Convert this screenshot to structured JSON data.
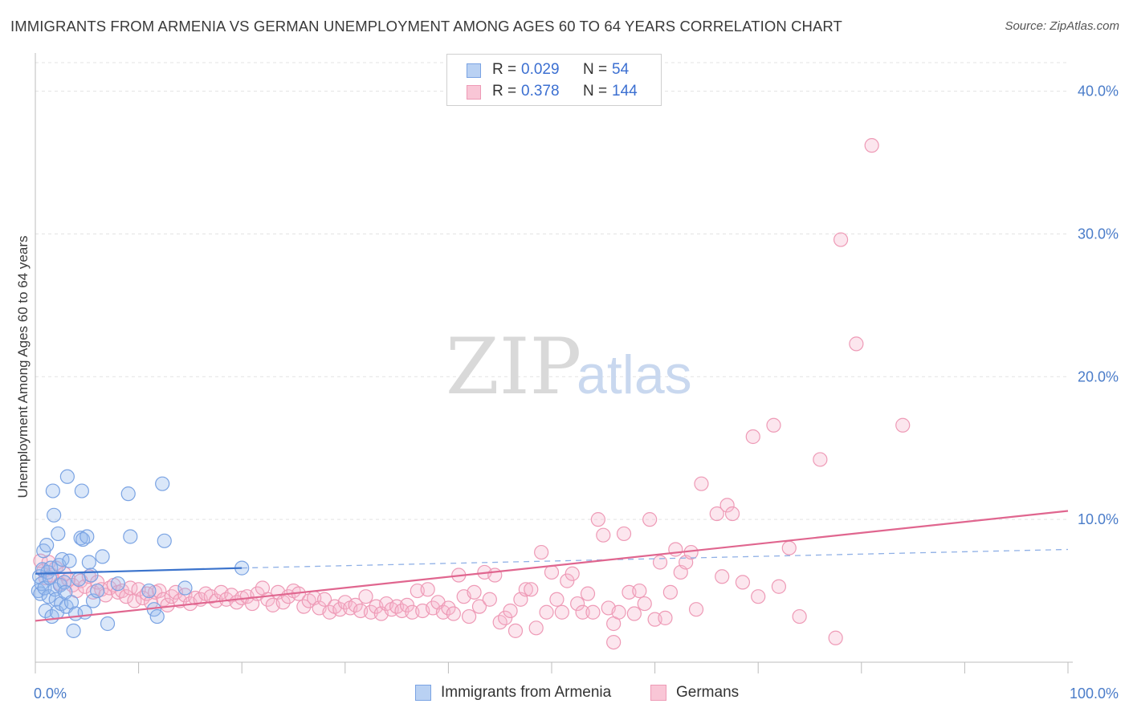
{
  "title": "IMMIGRANTS FROM ARMENIA VS GERMAN UNEMPLOYMENT AMONG AGES 60 TO 64 YEARS CORRELATION CHART",
  "source": "Source: ZipAtlas.com",
  "watermark": {
    "zip": "ZIP",
    "atlas": "atlas"
  },
  "legend": {
    "r_label": "R =",
    "n_label": "N =",
    "rows": [
      {
        "r": "0.029",
        "n": "54",
        "color": "#b9d1f3",
        "border": "#7aa3e3"
      },
      {
        "r": "0.378",
        "n": "144",
        "color": "#f9c6d6",
        "border": "#ee9ab6"
      }
    ]
  },
  "bottom_legend": [
    {
      "label": "Immigrants from Armenia",
      "color": "#b9d1f3",
      "border": "#7aa3e3"
    },
    {
      "label": "Germans",
      "color": "#f9c6d6",
      "border": "#ee9ab6"
    }
  ],
  "chart_data": {
    "type": "scatter",
    "xlabel": "",
    "ylabel": "Unemployment Among Ages 60 to 64 years",
    "xlim": [
      0,
      100
    ],
    "ylim": [
      0,
      42
    ],
    "x_tick_labels": [
      "0.0%",
      "100.0%"
    ],
    "y_ticks": [
      10,
      20,
      30,
      40
    ],
    "y_tick_labels": [
      "10.0%",
      "20.0%",
      "30.0%",
      "40.0%"
    ],
    "grid": true,
    "series": [
      {
        "name": "Immigrants from Armenia",
        "color": "#7aa3e3",
        "fill": "rgba(150,185,238,0.35)",
        "trend": {
          "x0": 0,
          "y0": 6.2,
          "x1": 20,
          "y1": 6.6,
          "dash_to_x": 100,
          "dash_to_y": 7.9,
          "color": "#3b73cc"
        },
        "points": [
          [
            0.3,
            5.0
          ],
          [
            0.4,
            6.0
          ],
          [
            0.5,
            4.8
          ],
          [
            0.6,
            5.5
          ],
          [
            0.7,
            6.5
          ],
          [
            0.8,
            7.8
          ],
          [
            0.9,
            5.2
          ],
          [
            1.0,
            3.6
          ],
          [
            1.1,
            8.2
          ],
          [
            1.2,
            6.3
          ],
          [
            1.3,
            4.6
          ],
          [
            1.4,
            5.9
          ],
          [
            1.5,
            6.6
          ],
          [
            1.6,
            3.2
          ],
          [
            1.7,
            12.0
          ],
          [
            1.8,
            10.3
          ],
          [
            1.9,
            5.1
          ],
          [
            2.0,
            4.4
          ],
          [
            2.1,
            3.5
          ],
          [
            2.2,
            9.0
          ],
          [
            2.3,
            6.8
          ],
          [
            2.4,
            5.4
          ],
          [
            2.5,
            4.1
          ],
          [
            2.6,
            7.2
          ],
          [
            2.8,
            5.6
          ],
          [
            2.9,
            4.9
          ],
          [
            3.0,
            3.9
          ],
          [
            3.1,
            13.0
          ],
          [
            3.3,
            7.1
          ],
          [
            3.5,
            4.2
          ],
          [
            3.7,
            2.2
          ],
          [
            3.9,
            3.4
          ],
          [
            4.2,
            5.8
          ],
          [
            4.4,
            8.7
          ],
          [
            4.5,
            12.0
          ],
          [
            4.6,
            8.6
          ],
          [
            4.8,
            3.5
          ],
          [
            5.0,
            8.8
          ],
          [
            5.2,
            7.0
          ],
          [
            5.4,
            6.1
          ],
          [
            5.6,
            4.3
          ],
          [
            6.0,
            5.0
          ],
          [
            6.5,
            7.4
          ],
          [
            7.0,
            2.7
          ],
          [
            8.0,
            5.5
          ],
          [
            9.0,
            11.8
          ],
          [
            9.2,
            8.8
          ],
          [
            11.0,
            5.0
          ],
          [
            11.5,
            3.7
          ],
          [
            11.8,
            3.2
          ],
          [
            12.3,
            12.5
          ],
          [
            12.5,
            8.5
          ],
          [
            14.5,
            5.2
          ],
          [
            20.0,
            6.6
          ]
        ]
      },
      {
        "name": "Germans",
        "color": "#ee9ab6",
        "fill": "rgba(247,183,205,0.35)",
        "trend": {
          "x0": 0,
          "y0": 2.9,
          "x1": 100,
          "y1": 10.6,
          "color": "#e0668f"
        },
        "points": [
          [
            0.5,
            7.1
          ],
          [
            0.8,
            6.4
          ],
          [
            1.0,
            5.9
          ],
          [
            1.3,
            7.0
          ],
          [
            1.6,
            6.1
          ],
          [
            2.0,
            6.6
          ],
          [
            2.4,
            5.5
          ],
          [
            2.8,
            6.2
          ],
          [
            3.2,
            5.8
          ],
          [
            3.6,
            5.4
          ],
          [
            4.0,
            5.0
          ],
          [
            4.4,
            5.7
          ],
          [
            4.8,
            5.3
          ],
          [
            5.2,
            6.0
          ],
          [
            5.6,
            4.9
          ],
          [
            6.0,
            5.6
          ],
          [
            6.4,
            5.1
          ],
          [
            6.8,
            4.7
          ],
          [
            7.2,
            5.2
          ],
          [
            7.6,
            5.4
          ],
          [
            8.0,
            4.9
          ],
          [
            8.4,
            5.0
          ],
          [
            8.8,
            4.6
          ],
          [
            9.2,
            5.2
          ],
          [
            9.6,
            4.3
          ],
          [
            10.0,
            5.1
          ],
          [
            10.4,
            4.5
          ],
          [
            10.8,
            4.8
          ],
          [
            11.2,
            4.2
          ],
          [
            11.6,
            4.9
          ],
          [
            12.0,
            5.0
          ],
          [
            12.4,
            4.4
          ],
          [
            12.8,
            4.0
          ],
          [
            13.2,
            4.6
          ],
          [
            13.6,
            4.9
          ],
          [
            14.0,
            4.3
          ],
          [
            14.5,
            4.7
          ],
          [
            15.0,
            4.1
          ],
          [
            15.5,
            4.5
          ],
          [
            16.0,
            4.4
          ],
          [
            16.5,
            4.8
          ],
          [
            17.0,
            4.6
          ],
          [
            17.5,
            4.3
          ],
          [
            18.0,
            4.9
          ],
          [
            18.5,
            4.4
          ],
          [
            19.0,
            4.7
          ],
          [
            19.5,
            4.2
          ],
          [
            20.0,
            4.5
          ],
          [
            20.5,
            4.6
          ],
          [
            21.0,
            4.1
          ],
          [
            21.5,
            4.8
          ],
          [
            22.0,
            5.2
          ],
          [
            22.5,
            4.4
          ],
          [
            23.0,
            4.0
          ],
          [
            23.5,
            4.9
          ],
          [
            24.0,
            4.2
          ],
          [
            24.5,
            4.6
          ],
          [
            25.0,
            5.0
          ],
          [
            25.5,
            4.8
          ],
          [
            26.0,
            3.9
          ],
          [
            26.5,
            4.3
          ],
          [
            27.0,
            4.5
          ],
          [
            27.5,
            3.8
          ],
          [
            28.0,
            4.4
          ],
          [
            28.5,
            3.5
          ],
          [
            29.0,
            3.9
          ],
          [
            29.5,
            3.7
          ],
          [
            30.0,
            4.2
          ],
          [
            30.5,
            3.8
          ],
          [
            31.0,
            4.0
          ],
          [
            31.5,
            3.6
          ],
          [
            32.0,
            4.6
          ],
          [
            32.5,
            3.5
          ],
          [
            33.0,
            3.9
          ],
          [
            33.5,
            3.4
          ],
          [
            34.0,
            4.1
          ],
          [
            34.5,
            3.7
          ],
          [
            35.0,
            3.9
          ],
          [
            35.5,
            3.6
          ],
          [
            36.0,
            4.0
          ],
          [
            36.5,
            3.5
          ],
          [
            37.0,
            5.0
          ],
          [
            37.5,
            3.6
          ],
          [
            38.0,
            5.1
          ],
          [
            38.5,
            3.8
          ],
          [
            39.0,
            4.2
          ],
          [
            39.5,
            3.5
          ],
          [
            40.0,
            3.8
          ],
          [
            40.5,
            3.4
          ],
          [
            41.0,
            6.1
          ],
          [
            41.5,
            4.6
          ],
          [
            42.0,
            3.2
          ],
          [
            42.5,
            4.9
          ],
          [
            43.0,
            3.9
          ],
          [
            43.5,
            6.3
          ],
          [
            44.0,
            4.4
          ],
          [
            44.5,
            6.1
          ],
          [
            45.0,
            2.8
          ],
          [
            45.5,
            3.1
          ],
          [
            46.0,
            3.6
          ],
          [
            46.5,
            2.2
          ],
          [
            47.0,
            4.4
          ],
          [
            47.5,
            5.1
          ],
          [
            48.0,
            5.1
          ],
          [
            48.5,
            2.4
          ],
          [
            49.0,
            7.7
          ],
          [
            49.5,
            3.5
          ],
          [
            50.0,
            6.3
          ],
          [
            50.5,
            4.4
          ],
          [
            51.0,
            3.5
          ],
          [
            51.5,
            5.7
          ],
          [
            52.0,
            6.2
          ],
          [
            52.5,
            4.1
          ],
          [
            53.0,
            3.5
          ],
          [
            53.5,
            4.8
          ],
          [
            54.0,
            3.5
          ],
          [
            54.5,
            10.0
          ],
          [
            55.0,
            8.9
          ],
          [
            55.5,
            3.8
          ],
          [
            56.0,
            2.7
          ],
          [
            56.5,
            3.5
          ],
          [
            57.0,
            9.0
          ],
          [
            57.5,
            4.9
          ],
          [
            58.0,
            3.4
          ],
          [
            58.5,
            5.0
          ],
          [
            59.0,
            4.1
          ],
          [
            59.5,
            10.0
          ],
          [
            60.0,
            3.0
          ],
          [
            60.5,
            7.0
          ],
          [
            61.0,
            3.1
          ],
          [
            61.5,
            4.9
          ],
          [
            62.0,
            7.9
          ],
          [
            62.5,
            6.3
          ],
          [
            63.0,
            7.0
          ],
          [
            63.5,
            7.7
          ],
          [
            64.0,
            3.7
          ],
          [
            64.5,
            12.5
          ],
          [
            66.0,
            10.4
          ],
          [
            67.0,
            11.0
          ],
          [
            67.5,
            10.4
          ],
          [
            68.5,
            5.6
          ],
          [
            69.5,
            15.8
          ],
          [
            71.5,
            16.6
          ],
          [
            74.0,
            3.2
          ],
          [
            76.0,
            14.2
          ],
          [
            77.5,
            1.7
          ],
          [
            78.0,
            29.6
          ],
          [
            84.0,
            16.6
          ],
          [
            79.5,
            22.3
          ],
          [
            81.0,
            36.2
          ],
          [
            56.0,
            1.4
          ],
          [
            72.0,
            5.3
          ],
          [
            70.0,
            4.6
          ],
          [
            66.5,
            6.0
          ],
          [
            73.0,
            8.0
          ]
        ]
      }
    ]
  }
}
